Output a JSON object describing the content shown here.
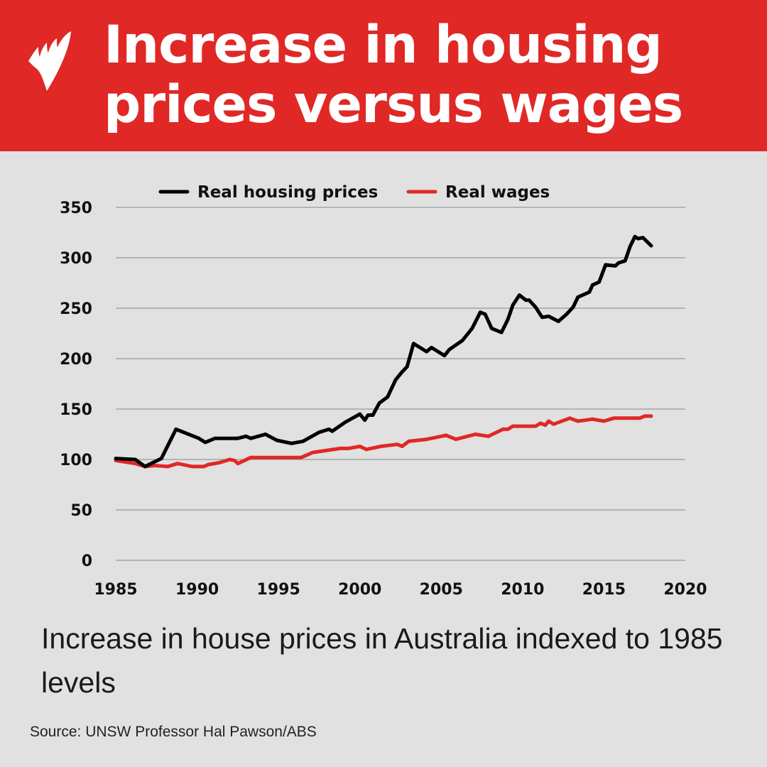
{
  "header": {
    "title_line1": "Increase in housing",
    "title_line2": "prices versus wages",
    "logo": "broadcaster-logo"
  },
  "caption": "Increase in house prices in Australia indexed to 1985 levels",
  "source": "Source: UNSW Professor Hal Pawson/ABS",
  "colors": {
    "header": "#e02826",
    "background": "#e1e1e1",
    "housing": "#000000",
    "wages": "#e02826"
  },
  "chart_data": {
    "type": "line",
    "title": "",
    "xlabel": "",
    "ylabel": "",
    "xlim": [
      1985,
      2020
    ],
    "ylim": [
      0,
      350
    ],
    "xticks": [
      "1985",
      "1990",
      "1995",
      "2000",
      "2005",
      "2010",
      "2015",
      "2020"
    ],
    "yticks": [
      "0",
      "50",
      "100",
      "150",
      "200",
      "250",
      "300",
      "350"
    ],
    "grid": "horizontal",
    "legend": "top",
    "series": [
      {
        "name": "Real housing prices",
        "color": "#000000",
        "x": [
          1985,
          1986.2,
          1986.8,
          1987.8,
          1988.7,
          1990.1,
          1990.5,
          1991.1,
          1992.5,
          1993,
          1993.3,
          1994.2,
          1994.9,
          1995.8,
          1996.5,
          1997.5,
          1998.1,
          1998.3,
          1999.1,
          2000,
          2000.3,
          2000.5,
          2000.8,
          2001.2,
          2001.7,
          2002.2,
          2002.6,
          2002.9,
          2003.3,
          2004.1,
          2004.4,
          2005.2,
          2005.5,
          2006.3,
          2006.9,
          2007.4,
          2007.7,
          2008.1,
          2008.7,
          2009.1,
          2009.4,
          2009.8,
          2010.2,
          2010.4,
          2010.8,
          2011.2,
          2011.6,
          2012.2,
          2012.7,
          2013.1,
          2013.4,
          2014.1,
          2014.3,
          2014.7,
          2015.1,
          2015.7,
          2015.9,
          2016.3,
          2016.6,
          2016.9,
          2017.1,
          2017.4,
          2017.9
        ],
        "y": [
          101,
          100,
          93,
          101,
          130,
          121,
          117,
          121,
          121,
          123,
          121,
          125,
          119,
          116,
          118,
          127,
          130,
          128,
          137,
          145,
          139,
          144,
          144,
          156,
          162,
          179,
          187,
          192,
          215,
          207,
          211,
          203,
          209,
          218,
          230,
          246,
          244,
          230,
          226,
          239,
          253,
          263,
          258,
          258,
          251,
          241,
          242,
          237,
          244,
          251,
          261,
          266,
          273,
          276,
          293,
          292,
          295,
          297,
          311,
          321,
          319,
          320,
          312
        ]
      },
      {
        "name": "Real wages",
        "color": "#e02826",
        "x": [
          1985,
          1986.2,
          1986.8,
          1987.4,
          1988.2,
          1988.8,
          1989.7,
          1990.4,
          1990.7,
          1991.4,
          1992,
          1992.3,
          1992.5,
          1993.3,
          1996.4,
          1997.1,
          1998.8,
          1999.3,
          2000,
          2000.4,
          2001.3,
          2002.3,
          2002.6,
          2003,
          2004.1,
          2005.3,
          2005.9,
          2007.1,
          2007.9,
          2008.8,
          2009.1,
          2009.4,
          2010.8,
          2011.1,
          2011.4,
          2011.6,
          2011.9,
          2012.9,
          2013.4,
          2014.3,
          2015,
          2015.6,
          2017.2,
          2017.5,
          2017.9
        ],
        "y": [
          99,
          96,
          93,
          94,
          93,
          96,
          93,
          93,
          95,
          97,
          100,
          99,
          96,
          102,
          102,
          107,
          111,
          111,
          113,
          110,
          113,
          115,
          113,
          118,
          120,
          124,
          120,
          125,
          123,
          130,
          130,
          133,
          133,
          136,
          134,
          138,
          135,
          141,
          138,
          140,
          138,
          141,
          141,
          143,
          143
        ]
      }
    ]
  }
}
